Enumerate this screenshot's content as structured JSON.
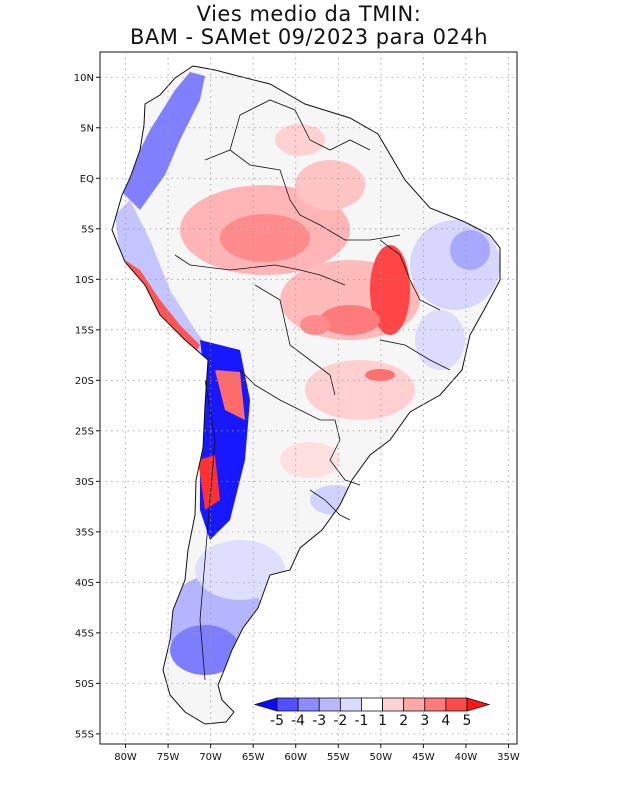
{
  "title": {
    "line1": "Vies medio da TMIN:",
    "line2": "BAM - SAMet 09/2023  para 024h"
  },
  "axes": {
    "lat_ticks": [
      "10N",
      "5N",
      "EQ",
      "5S",
      "10S",
      "15S",
      "20S",
      "25S",
      "30S",
      "35S",
      "40S",
      "45S",
      "50S",
      "55S"
    ],
    "lat_values": [
      10,
      5,
      0,
      -5,
      -10,
      -15,
      -20,
      -25,
      -30,
      -35,
      -40,
      -45,
      -50,
      -55
    ],
    "lon_ticks": [
      "80W",
      "75W",
      "70W",
      "65W",
      "60W",
      "55W",
      "50W",
      "45W",
      "40W",
      "35W"
    ],
    "lon_values": [
      -80,
      -75,
      -70,
      -65,
      -60,
      -55,
      -50,
      -45,
      -40,
      -35
    ],
    "lat_range": [
      -56,
      12.5
    ],
    "lon_range": [
      -83,
      -34
    ],
    "grid": true
  },
  "colorbar": {
    "labels": [
      "-5",
      "-4",
      "-3",
      "-2",
      "-1",
      "1",
      "2",
      "3",
      "4",
      "5"
    ],
    "colors": [
      "#0b0bff",
      "#5050ff",
      "#8c8cff",
      "#b8b8ff",
      "#dadaff",
      "#ffffff",
      "#ffd2d2",
      "#ffa8a8",
      "#ff7a7a",
      "#ff4a4a",
      "#ff1414"
    ],
    "placement": "bottom-right"
  },
  "colors": {
    "continent_fill": "#f6f6f6",
    "coast_line": "#111111",
    "grid_line": "#9a9a9a"
  }
}
